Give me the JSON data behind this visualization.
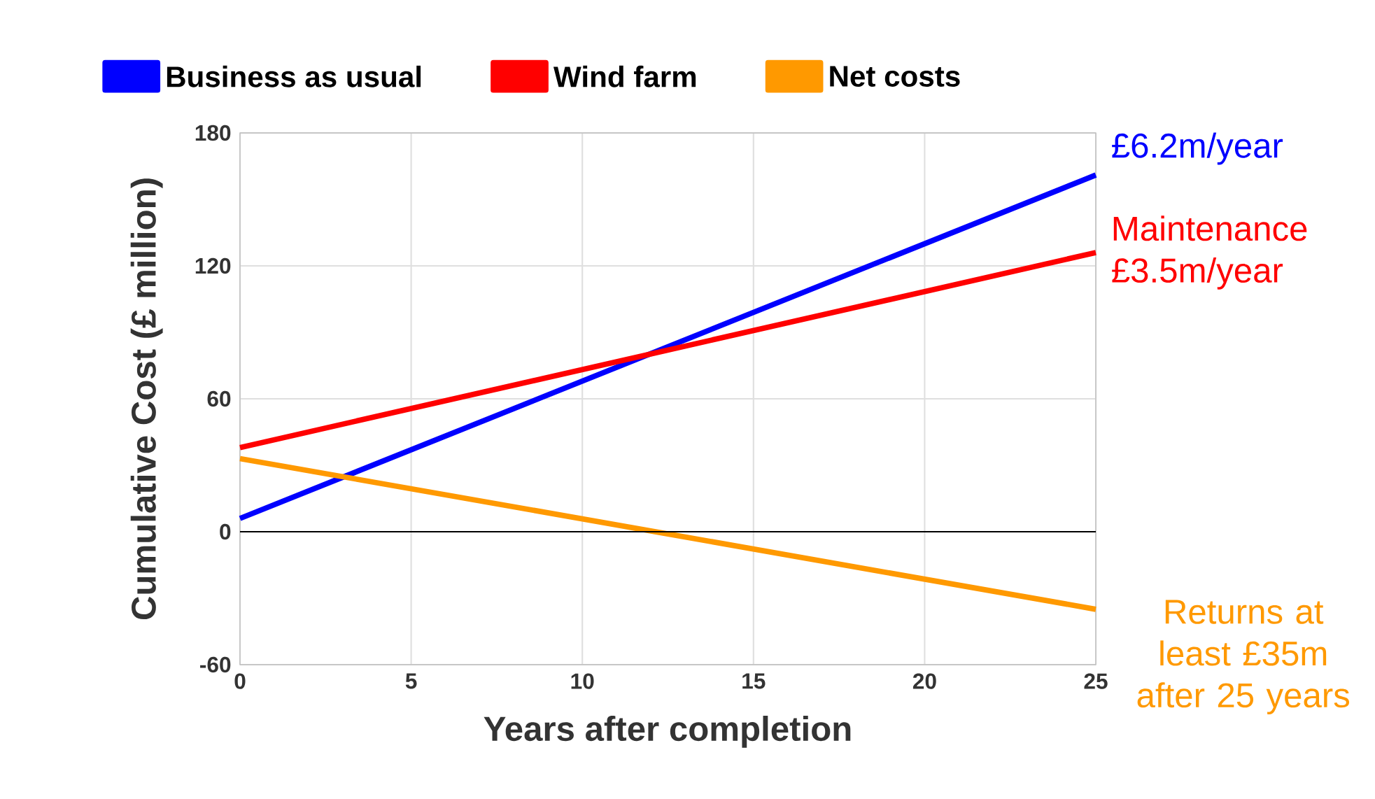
{
  "chart_data": {
    "type": "line",
    "xlabel": "Years after completion",
    "ylabel": "Cumulative Cost (£ million)",
    "xlim": [
      0,
      25
    ],
    "ylim": [
      -60,
      180
    ],
    "xticks": [
      0,
      5,
      10,
      15,
      20,
      25
    ],
    "yticks": [
      -60,
      0,
      60,
      120,
      180
    ],
    "x": [
      0,
      25
    ],
    "grid": true,
    "legend": "top",
    "line_style": "solid",
    "series": [
      {
        "name": "Business as usual",
        "color": "#0000ff",
        "values": [
          6,
          161
        ]
      },
      {
        "name": "Wind farm",
        "color": "#ff0000",
        "values": [
          38,
          126
        ]
      },
      {
        "name": "Net costs",
        "color": "#ff9900",
        "values": [
          33,
          -35
        ]
      }
    ],
    "ref_lines": [
      {
        "axis": "y",
        "value": 0,
        "color": "#000000"
      }
    ],
    "annotations": [
      "£6.2m/year",
      "Maintenance £3.5m/year",
      "Returns at least £35m after 25 years"
    ]
  }
}
